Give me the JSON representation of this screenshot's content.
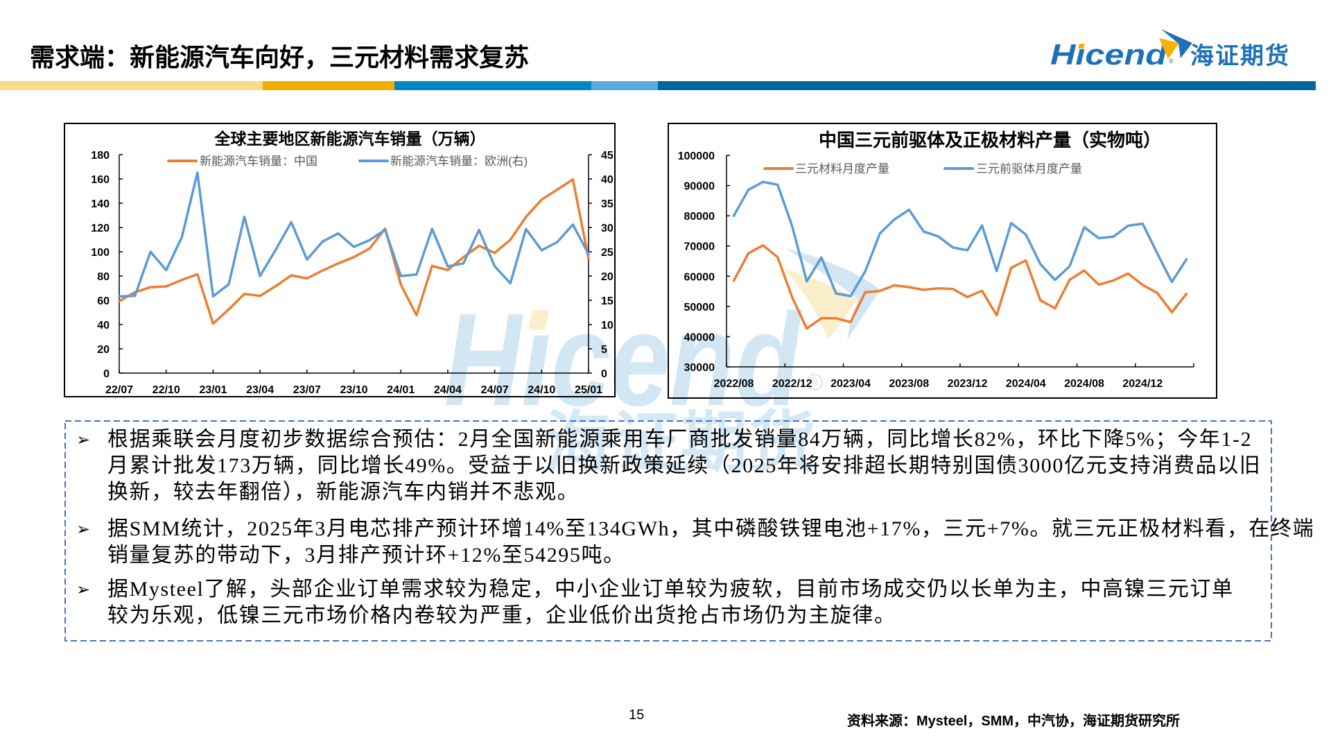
{
  "header": {
    "title": "需求端：新能源汽车向好，三元材料需求复苏",
    "logo": {
      "wordmark_prefix": "H",
      "wordmark_dotless_i": "ı",
      "wordmark_suffix": "cend",
      "wordmark": "Hicend",
      "registered": "®",
      "chinese_name": "海证期货"
    },
    "color_bar": [
      "#F8DC8A",
      "#F2AE00",
      "#0088C6",
      "#5AAADC",
      "#00669E"
    ]
  },
  "colors": {
    "brand_blue": "#1D71B8",
    "brand_orange": "#F5B400",
    "series_orange": "#ED7D31",
    "series_blue": "#5B9BD5",
    "notes_border": "#4472C4",
    "legend_text": "#595959"
  },
  "watermark": {
    "wordmark": "Hıcend",
    "registered": "R",
    "chinese_name": "海证期货"
  },
  "chart_data": [
    {
      "type": "line",
      "title": "全球主要地区新能源汽车销量（万辆）",
      "xlabel": "",
      "ylabel": "",
      "x": [
        "22/07",
        "22/08",
        "22/09",
        "22/10",
        "22/11",
        "22/12",
        "23/01",
        "23/02",
        "23/03",
        "23/04",
        "23/05",
        "23/06",
        "23/07",
        "23/08",
        "23/09",
        "23/10",
        "23/11",
        "23/12",
        "24/01",
        "24/02",
        "24/03",
        "24/04",
        "24/05",
        "24/06",
        "24/07",
        "24/08",
        "24/09",
        "24/10",
        "24/11",
        "24/12",
        "25/01"
      ],
      "x_tick_labels": [
        "22/07",
        "22/10",
        "23/01",
        "23/04",
        "23/07",
        "23/10",
        "24/01",
        "24/04",
        "24/07",
        "24/10",
        "25/01"
      ],
      "y_axes": {
        "left": {
          "lim": [
            0,
            180
          ],
          "ticks": [
            0,
            20,
            40,
            60,
            80,
            100,
            120,
            140,
            160,
            180
          ]
        },
        "right": {
          "lim": [
            0,
            45
          ],
          "ticks": [
            0,
            5,
            10,
            15,
            20,
            25,
            30,
            35,
            40,
            45
          ]
        }
      },
      "series": [
        {
          "key": "china",
          "name": "新能源汽车销量：中国",
          "axis": "left",
          "color": "#ED7D31",
          "values": [
            59.3,
            66.6,
            70.8,
            71.4,
            76.8,
            81.4,
            40.8,
            52.5,
            65.3,
            63.6,
            71.7,
            80.6,
            78.0,
            84.6,
            90.4,
            95.6,
            102.6,
            119.1,
            72.9,
            47.7,
            88.3,
            85.0,
            95.5,
            104.9,
            99.1,
            109.9,
            128.7,
            143.0,
            151.2,
            159.6,
            94.4
          ]
        },
        {
          "key": "europe",
          "name": "新能源汽车销量：欧洲(右)",
          "axis": "right",
          "color": "#5B9BD5",
          "values": [
            15.8,
            15.9,
            25.0,
            21.2,
            28.0,
            41.3,
            15.8,
            18.3,
            32.2,
            20.0,
            25.4,
            31.1,
            23.4,
            27.1,
            28.8,
            26.0,
            27.4,
            29.5,
            20.0,
            20.3,
            29.7,
            22.0,
            22.6,
            29.5,
            22.0,
            18.5,
            29.7,
            25.3,
            27.0,
            30.6,
            24.5
          ]
        }
      ],
      "legend_position": "top",
      "grid": false
    },
    {
      "type": "line",
      "title": "中国三元前驱体及正极材料产量（实物吨）",
      "xlabel": "",
      "ylabel": "",
      "x": [
        "2022/08",
        "2022/09",
        "2022/10",
        "2022/11",
        "2022/12",
        "2023/01",
        "2023/02",
        "2023/03",
        "2023/04",
        "2023/05",
        "2023/06",
        "2023/07",
        "2023/08",
        "2023/09",
        "2023/10",
        "2023/11",
        "2023/12",
        "2024/01",
        "2024/02",
        "2024/03",
        "2024/04",
        "2024/05",
        "2024/06",
        "2024/07",
        "2024/08",
        "2024/09",
        "2024/10",
        "2024/11",
        "2024/12",
        "2025/01",
        "2025/02",
        "2025/03"
      ],
      "x_tick_labels": [
        "2022/08",
        "2022/12",
        "2023/04",
        "2023/08",
        "2023/12",
        "2024/04",
        "2024/08",
        "2024/12"
      ],
      "y_axes": {
        "left": {
          "lim": [
            30000,
            100000
          ],
          "ticks": [
            30000,
            40000,
            50000,
            60000,
            70000,
            80000,
            90000,
            100000
          ]
        }
      },
      "series": [
        {
          "key": "cathode",
          "name": "三元材料月度产量",
          "axis": "left",
          "color": "#ED7D31",
          "values": [
            58500,
            67600,
            70200,
            66300,
            53000,
            42700,
            46100,
            46100,
            44800,
            54700,
            55100,
            57000,
            56400,
            55500,
            56000,
            55800,
            53100,
            55200,
            47100,
            62800,
            65200,
            52000,
            49400,
            58800,
            61900,
            57200,
            58600,
            60900,
            57100,
            54500,
            48100,
            54200
          ]
        },
        {
          "key": "precursor",
          "name": "三元前驱体月度产量",
          "axis": "left",
          "color": "#5B9BD5",
          "values": [
            80000,
            88600,
            91200,
            90300,
            76500,
            58300,
            66200,
            54300,
            53400,
            61600,
            74100,
            78800,
            82000,
            74800,
            73200,
            69500,
            68600,
            76800,
            61700,
            77600,
            73800,
            64000,
            58800,
            63300,
            76200,
            72600,
            73100,
            76700,
            77400,
            67600,
            58100,
            65600
          ]
        }
      ],
      "legend_position": "top",
      "grid": false
    }
  ],
  "notes": {
    "bullet_icon": "➢",
    "items": [
      {
        "lines": [
          "根据乘联会月度初步数据综合预估：2月全国新能源乘用车厂商批发销量84万辆，同比增长82%，环比下降5%；今年1-2",
          "月累计批发173万辆，同比增长49%。受益于以旧换新政策延续（2025年将安排超长期特别国债3000亿元支持消费品以旧",
          "换新，较去年翻倍），新能源汽车内销并不悲观。"
        ]
      },
      {
        "lines": [
          "据SMM统计，2025年3月电芯排产预计环增14%至134GWh，其中磷酸铁锂电池+17%，三元+7%。就三元正极材料看，在终端",
          "销量复苏的带动下，3月排产预计环+12%至54295吨。"
        ]
      },
      {
        "lines": [
          "据Mysteel了解，头部企业订单需求较为稳定，中小企业订单较为疲软，目前市场成交仍以长单为主，中高镍三元订单",
          "较为乐观，低镍三元市场价格内卷较为严重，企业低价出货抢占市场仍为主旋律。"
        ]
      }
    ]
  },
  "footer": {
    "page_number": "15",
    "source": "资料来源：Mysteel，SMM，中汽协，海证期货研究所"
  }
}
